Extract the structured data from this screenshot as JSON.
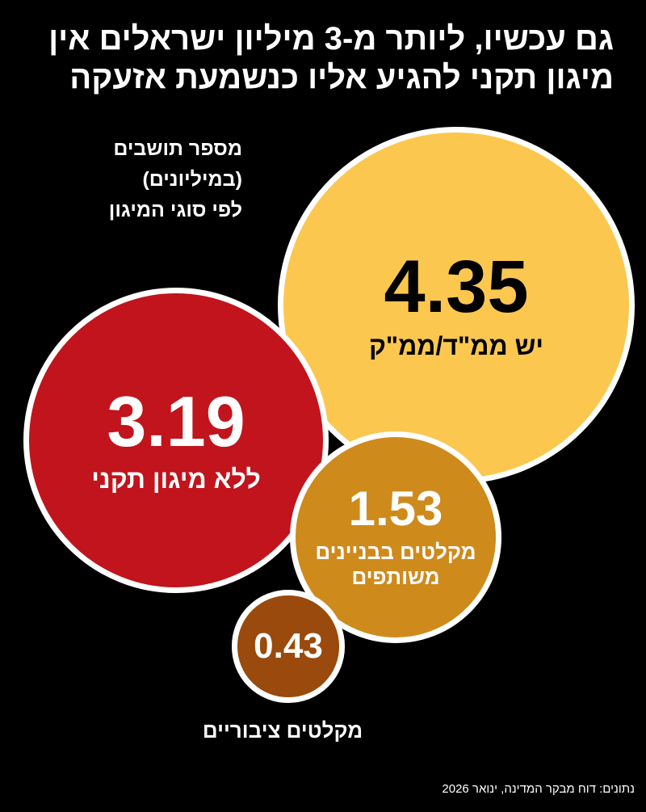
{
  "chart_data": {
    "type": "bubble",
    "title": [
      "גם עכשיו, ליותר מ-3 מיליון ישראלים אין",
      "מיגון תקני להגיע אליו כנשמעת אזעקה"
    ],
    "subtitle": [
      "מספר תושבים",
      "(במיליונים)",
      "לפי סוגי המיגון"
    ],
    "categories": [
      "יש ממ\"ד/ממ\"ק",
      "ללא מיגון תקני",
      "מקלטים בבניינים משותפים",
      "מקלטים ציבוריים"
    ],
    "values": [
      4.35,
      3.19,
      1.53,
      0.43
    ],
    "colors": [
      "#fcc74f",
      "#c1141c",
      "#cf8a1c",
      "#994a0c"
    ],
    "source": "נתונים: דוח מבקר המדינה, ינואר 2026"
  }
}
